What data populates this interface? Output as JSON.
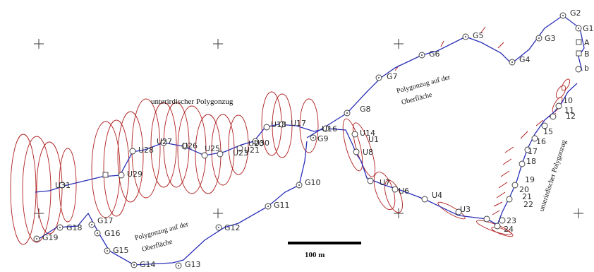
{
  "annotations": {
    "underground_upper": "unterirdischer Polygonzug",
    "underground_right": "unterirdischer Polygonzug",
    "surface_upper_line1": "Polygonzug auf der",
    "surface_upper_line2": "Oberfläche",
    "surface_lower_line1": "Polygonzug auf der",
    "surface_lower_line2": "Oberfläche"
  },
  "scale_bar": {
    "label": "100 m"
  },
  "surface_stations": [
    "G1",
    "G2",
    "G3",
    "G4",
    "G5",
    "G6",
    "G7",
    "G8",
    "G9",
    "G10",
    "G11",
    "G12",
    "G13",
    "G14",
    "G15",
    "G16",
    "G17",
    "G18",
    "G19"
  ],
  "underground_stations_upper": [
    "U1",
    "U3",
    "U4",
    "U6",
    "U7",
    "U8",
    "U14",
    "U16",
    "U17",
    "U18",
    "U20",
    "U21",
    "U23",
    "U25",
    "U26",
    "U27",
    "U28",
    "U29",
    "U30",
    "U31"
  ],
  "underground_stations_right": [
    "10",
    "11",
    "12",
    "15",
    "16",
    "17",
    "18",
    "19",
    "20",
    "21",
    "22",
    "23",
    "24"
  ],
  "marker_labels": [
    "A",
    "B",
    "b"
  ],
  "colors": {
    "route": "#2a2fb8",
    "error_ellipse": "#b02020",
    "label": "#2b2b2b"
  }
}
